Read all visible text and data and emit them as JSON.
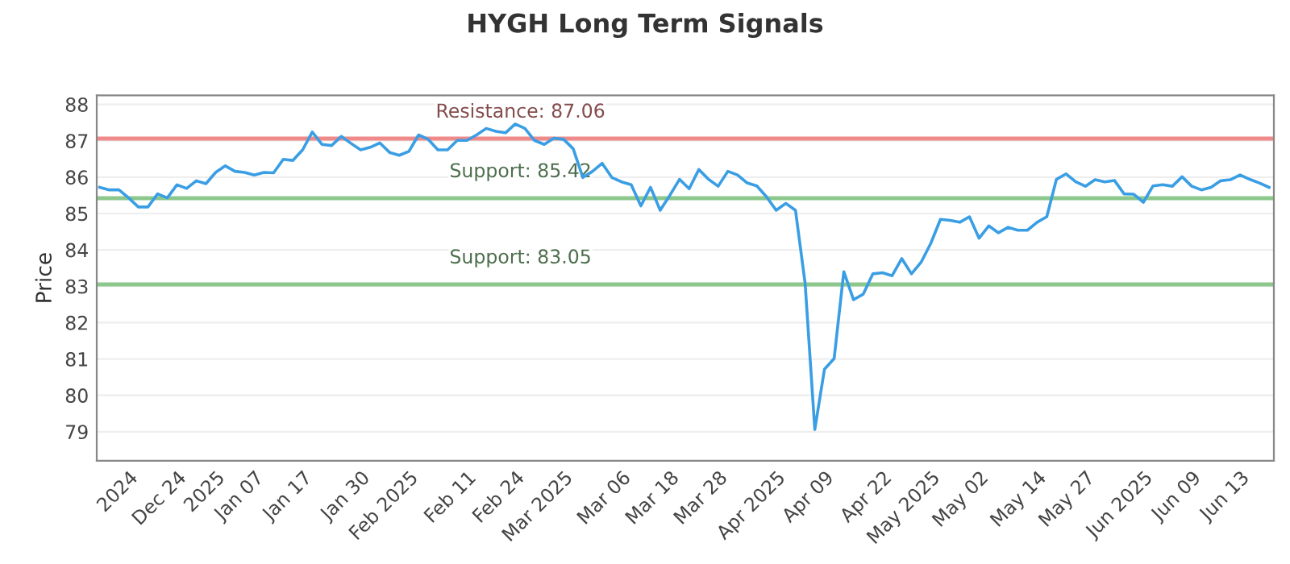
{
  "chart_data": {
    "type": "line",
    "title": "HYGH Long Term Signals",
    "ylabel": "Price",
    "categories": [
      null,
      null,
      null,
      "2024",
      null,
      null,
      null,
      null,
      "Dec 24",
      null,
      null,
      null,
      "2025",
      null,
      null,
      null,
      "Jan 07",
      null,
      null,
      null,
      null,
      "Jan 17",
      null,
      null,
      null,
      null,
      null,
      "Jan 30",
      null,
      null,
      null,
      null,
      "Feb 2025",
      null,
      null,
      null,
      null,
      null,
      "Feb 11",
      null,
      null,
      null,
      null,
      "Feb 24",
      null,
      null,
      null,
      null,
      "Mar 2025",
      null,
      null,
      null,
      null,
      null,
      "Mar 06",
      null,
      null,
      null,
      null,
      "Mar 18",
      null,
      null,
      null,
      null,
      "Mar 28",
      null,
      null,
      null,
      null,
      null,
      "Apr 2025",
      null,
      null,
      null,
      null,
      "Apr 09",
      null,
      null,
      null,
      null,
      null,
      "Apr 22",
      null,
      null,
      null,
      null,
      "May 2025",
      null,
      null,
      null,
      null,
      "May 02",
      null,
      null,
      null,
      null,
      null,
      "May 14",
      null,
      null,
      null,
      null,
      "May 27",
      null,
      null,
      null,
      null,
      null,
      "Jun 2025",
      null,
      null,
      null,
      null,
      "Jun 09",
      null,
      null,
      null,
      null,
      "Jun 13",
      null,
      null,
      null
    ],
    "series": [
      {
        "color": "#3a9ee4",
        "values": [
          85.72,
          85.65,
          85.65,
          85.43,
          85.18,
          85.18,
          85.54,
          85.43,
          85.79,
          85.69,
          85.9,
          85.82,
          86.13,
          86.31,
          86.16,
          86.13,
          86.06,
          86.13,
          86.12,
          86.49,
          86.46,
          86.75,
          87.24,
          86.9,
          86.87,
          87.12,
          86.93,
          86.75,
          86.82,
          86.94,
          86.68,
          86.6,
          86.71,
          87.16,
          87.04,
          86.75,
          86.75,
          87.01,
          87.01,
          87.16,
          87.34,
          87.26,
          87.22,
          87.46,
          87.34,
          87.01,
          86.9,
          87.07,
          87.04,
          86.78,
          85.99,
          86.16,
          86.38,
          85.99,
          85.87,
          85.79,
          85.21,
          85.72,
          85.09,
          85.5,
          85.94,
          85.68,
          86.21,
          85.94,
          85.75,
          86.16,
          86.06,
          85.84,
          85.76,
          85.46,
          85.09,
          85.28,
          85.09,
          83.07,
          79.06,
          80.72,
          81.01,
          83.4,
          82.63,
          82.78,
          83.34,
          83.37,
          83.29,
          83.76,
          83.34,
          83.66,
          84.18,
          84.84,
          84.81,
          84.76,
          84.91,
          84.32,
          84.66,
          84.47,
          84.62,
          84.54,
          84.54,
          84.76,
          84.91,
          85.94,
          86.09,
          85.87,
          85.75,
          85.93,
          85.87,
          85.91,
          85.54,
          85.53,
          85.31,
          85.76,
          85.79,
          85.75,
          86.01,
          85.75,
          85.65,
          85.72,
          85.9,
          85.93,
          86.06,
          85.94,
          85.84,
          85.72
        ]
      }
    ],
    "ylim": [
      78.2,
      88.25
    ],
    "yticks": [
      79,
      80,
      81,
      82,
      83,
      84,
      85,
      86,
      87,
      88
    ],
    "grid": "y",
    "legend": false,
    "marker": "none",
    "line_style": "solid",
    "ref_lines": [
      {
        "axis": "y",
        "value": 87.06,
        "label": "Resistance: 87.06",
        "color": "#f08a8a"
      },
      {
        "axis": "y",
        "value": 85.42,
        "label": "Support: 85.42",
        "color": "#8cc88c"
      },
      {
        "axis": "y",
        "value": 83.05,
        "label": "Support: 83.05",
        "color": "#8cc88c"
      }
    ]
  }
}
